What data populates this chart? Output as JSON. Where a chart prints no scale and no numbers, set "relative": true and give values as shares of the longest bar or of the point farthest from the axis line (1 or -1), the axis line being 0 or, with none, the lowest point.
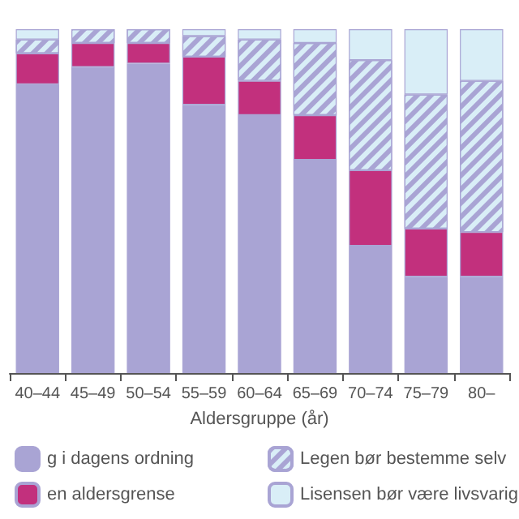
{
  "chart_data": {
    "type": "bar",
    "stacked": true,
    "relative": true,
    "xlabel": "Aldersgruppe (år)",
    "legend": "bottom",
    "categories": [
      "40–44",
      "45–49",
      "50–54",
      "55–59",
      "60–64",
      "65–69",
      "70–74",
      "75–79",
      "80–"
    ],
    "series": [
      {
        "name": "g i dagens ordning",
        "color": "#a9a4d4",
        "values": [
          0.84,
          0.89,
          0.9,
          0.78,
          0.75,
          0.62,
          0.37,
          0.28,
          0.28
        ]
      },
      {
        "name": "en aldersgrense",
        "color": "#c2307d",
        "values": [
          0.09,
          0.07,
          0.06,
          0.14,
          0.1,
          0.13,
          0.22,
          0.14,
          0.13
        ]
      },
      {
        "name": "Legen bør bestemme selv",
        "color": "#d9eef7",
        "values": [
          0.04,
          0.04,
          0.04,
          0.06,
          0.12,
          0.21,
          0.32,
          0.39,
          0.44
        ]
      },
      {
        "name": "Lisensen bør være livsvarig",
        "color": "#d9eef7",
        "values": [
          0.03,
          null,
          null,
          0.02,
          0.03,
          0.04,
          0.09,
          0.19,
          0.15
        ]
      }
    ]
  }
}
